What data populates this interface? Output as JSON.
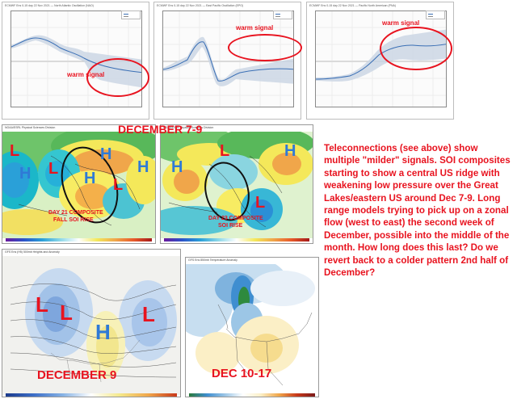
{
  "ensembles": [
    {
      "header": "ECMWF Ens 0-15 day 22 Nov 2021 — North Atlantic Oscillation (NAO)",
      "annotation": "warm signal"
    },
    {
      "header": "ECMWF Ens 0-15 day 22 Nov 2021 — East Pacific Oscillation (EPO)",
      "annotation": "warm signal"
    },
    {
      "header": "ECMWF Ens 0-15 day 22 Nov 2021 — Pacific North American (PNA)",
      "annotation": "warm signal"
    }
  ],
  "legend_colors": {
    "ensemble": "#3a6fb5",
    "mean": "#8a8a8a"
  },
  "composites": {
    "title": "DECEMBER 7-9",
    "left": {
      "header": "NOAA/ESRL Physical Sciences Division",
      "caption_line1": "DAY 21 COMPOSITE",
      "caption_line2": "FALL SOI RISE"
    },
    "right": {
      "header": "NOAA/ESRL Physical Sciences Division",
      "caption_line1": "DAY 23 COMPOSITE",
      "caption_line2": "SOI RISE"
    }
  },
  "maps": {
    "left": {
      "header": "GFS Ens (H5) 500mb Heights and Anomaly",
      "caption": "DECEMBER 9"
    },
    "right": {
      "header": "GFS Ens 850mb Temperature Anomaly",
      "caption": "DEC 10-17"
    }
  },
  "letters": {
    "low": "L",
    "high": "H"
  },
  "narrative": "Teleconnections (see above) show multiple \"milder\" signals.  SOI composites starting to show a central US ridge with weakening low pressure over the Great Lakes/eastern US around Dec 7-9.  Long range models trying to pick up on a zonal flow (west to east) the second week of December, possible into the middle of the month.  How long does this last? Do we revert back to a colder pattern 2nd half of December?",
  "colors": {
    "accent_red": "#e8131f",
    "high_blue": "#2f7ad6"
  }
}
